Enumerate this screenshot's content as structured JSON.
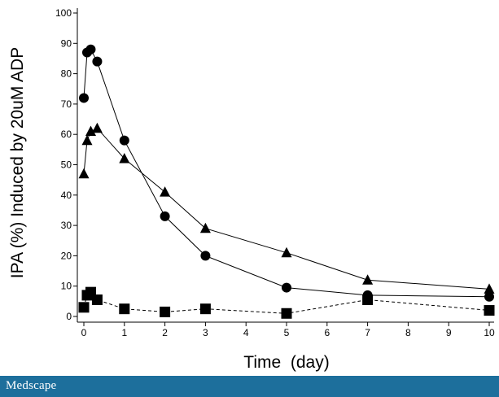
{
  "chart_data": {
    "type": "line",
    "title": "",
    "xlabel": "Time  (day)",
    "ylabel": "IPA  (%)  Induced by 20uM ADP",
    "xlim": [
      0,
      10
    ],
    "ylim": [
      0,
      100
    ],
    "x_ticks": [
      "0",
      "1",
      "2",
      "3",
      "4",
      "5",
      "6",
      "7",
      "8",
      "9",
      "10"
    ],
    "y_ticks": [
      "0",
      "10",
      "20",
      "30",
      "40",
      "50",
      "60",
      "70",
      "80",
      "90",
      "100"
    ],
    "grid": false,
    "legend": "none",
    "series": [
      {
        "marker": "circle",
        "line_style": "solid",
        "x": [
          0,
          0.08,
          0.17,
          0.33,
          1,
          2,
          3,
          5,
          7,
          10
        ],
        "y": [
          72,
          87,
          88,
          84,
          58,
          33,
          20,
          9.5,
          7,
          6.5
        ]
      },
      {
        "marker": "triangle",
        "line_style": "solid",
        "x": [
          0,
          0.08,
          0.17,
          0.33,
          1,
          2,
          3,
          5,
          7,
          10
        ],
        "y": [
          47,
          58,
          61,
          62,
          52,
          41,
          29,
          21,
          12,
          9
        ]
      },
      {
        "marker": "square",
        "line_style": "dashed",
        "x": [
          0,
          0.08,
          0.17,
          0.33,
          1,
          2,
          3,
          5,
          7,
          10
        ],
        "y": [
          3,
          7,
          8,
          5.5,
          2.5,
          1.5,
          2.5,
          1,
          5.5,
          2
        ]
      }
    ],
    "colors": {
      "marker": "#000000",
      "line": "#000000"
    }
  },
  "footer": {
    "brand": "Medscape",
    "background": "#1d6f9c"
  }
}
